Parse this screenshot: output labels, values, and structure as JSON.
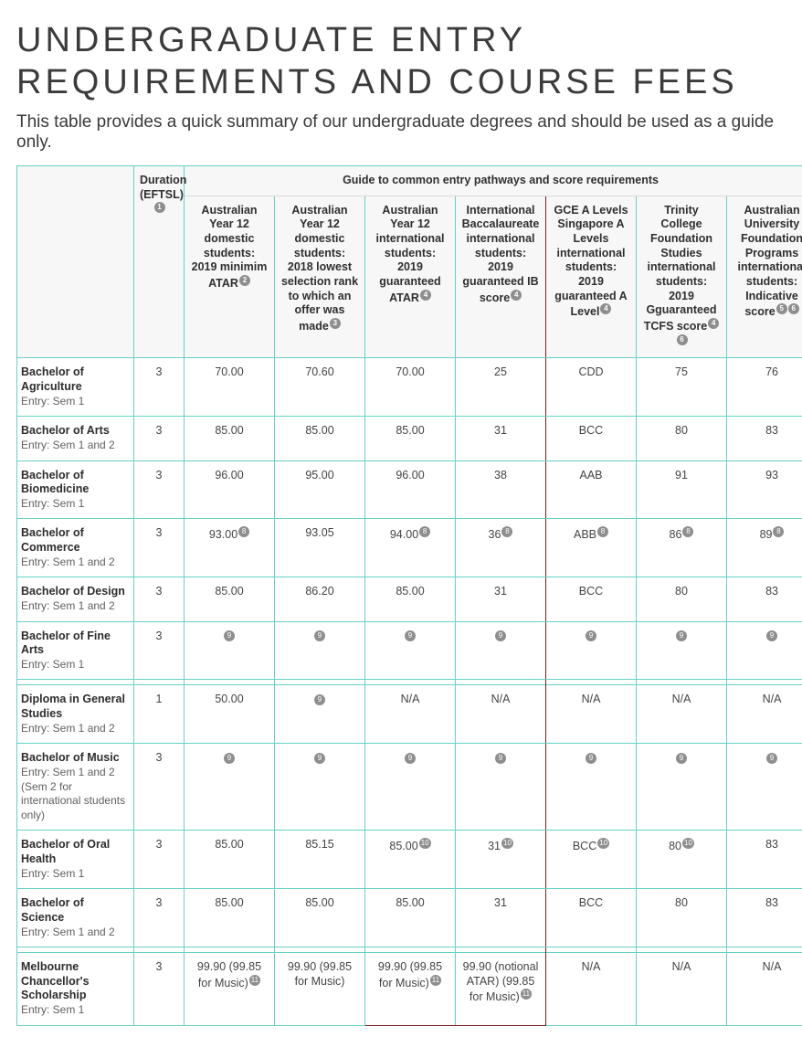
{
  "page": {
    "title": "UNDERGRADUATE ENTRY REQUIREMENTS AND COURSE FEES",
    "intro": "This table provides a quick summary of our undergraduate degrees and should be used as a guide only."
  },
  "headers": {
    "duration": "Duration (EFTSL)",
    "duration_note": "1",
    "pathways_title": "Guide to common entry pathways and score requirements",
    "cols": [
      {
        "label": "Australian Year 12 domestic students: 2019 minimim ATAR",
        "notes": [
          "2"
        ]
      },
      {
        "label": "Australian Year 12 domestic students: 2018 lowest selection rank to which an offer was made",
        "notes": [
          "3"
        ]
      },
      {
        "label": "Australian Year 12 international students: 2019 guaranteed ATAR",
        "notes": [
          "4"
        ],
        "hl": "left"
      },
      {
        "label": "International Baccalaureate international students: 2019 guaranteed IB score",
        "notes": [
          "4"
        ],
        "hl": "right"
      },
      {
        "label": "GCE A Levels Singapore A Levels international students: 2019 guaranteed A Level",
        "notes": [
          "4"
        ]
      },
      {
        "label": "Trinity College Foundation Studies international students: 2019 Gguaranteed TCFS score",
        "notes": [
          "4",
          "6"
        ]
      },
      {
        "label": "Australian University Foundation Programs international students: Indicative score",
        "notes": [
          "5",
          "6"
        ]
      }
    ]
  },
  "style": {
    "border_color": "#66d1c6",
    "header_bg": "#f7f7f7",
    "highlight_border": "#7a1d1d",
    "badge_bg": "#8e8e8e",
    "text_color": "#2a2a2a"
  },
  "rows": [
    {
      "course": "Bachelor of Agriculture",
      "entry": "Entry: Sem 1",
      "duration": "3",
      "cells": [
        {
          "v": "70.00"
        },
        {
          "v": "70.60"
        },
        {
          "v": "70.00"
        },
        {
          "v": "25"
        },
        {
          "v": "CDD"
        },
        {
          "v": "75"
        },
        {
          "v": "76"
        }
      ]
    },
    {
      "course": "Bachelor of Arts",
      "entry": "Entry: Sem 1 and 2",
      "duration": "3",
      "cells": [
        {
          "v": "85.00"
        },
        {
          "v": "85.00"
        },
        {
          "v": "85.00"
        },
        {
          "v": "31"
        },
        {
          "v": "BCC"
        },
        {
          "v": "80"
        },
        {
          "v": "83"
        }
      ]
    },
    {
      "course": "Bachelor of Biomedicine",
      "entry": "Entry: Sem 1",
      "duration": "3",
      "cells": [
        {
          "v": "96.00"
        },
        {
          "v": "95.00"
        },
        {
          "v": "96.00"
        },
        {
          "v": "38"
        },
        {
          "v": "AAB"
        },
        {
          "v": "91"
        },
        {
          "v": "93"
        }
      ]
    },
    {
      "course": "Bachelor of Commerce",
      "entry": "Entry: Sem 1 and 2",
      "duration": "3",
      "cells": [
        {
          "v": "93.00",
          "notes": [
            "8"
          ]
        },
        {
          "v": "93.05"
        },
        {
          "v": "94.00",
          "notes": [
            "8"
          ]
        },
        {
          "v": "36",
          "notes": [
            "8"
          ]
        },
        {
          "v": "ABB",
          "notes": [
            "8"
          ]
        },
        {
          "v": "86",
          "notes": [
            "8"
          ]
        },
        {
          "v": "89",
          "notes": [
            "8"
          ]
        }
      ]
    },
    {
      "course": "Bachelor of Design",
      "entry": "Entry: Sem 1 and 2",
      "duration": "3",
      "cells": [
        {
          "v": "85.00"
        },
        {
          "v": "86.20"
        },
        {
          "v": "85.00"
        },
        {
          "v": "31"
        },
        {
          "v": "BCC"
        },
        {
          "v": "80"
        },
        {
          "v": "83"
        }
      ]
    },
    {
      "course": "Bachelor of Fine Arts",
      "entry": "Entry: Sem 1",
      "duration": "3",
      "cells": [
        {
          "notes": [
            "9"
          ]
        },
        {
          "notes": [
            "9"
          ]
        },
        {
          "notes": [
            "9"
          ]
        },
        {
          "notes": [
            "9"
          ]
        },
        {
          "notes": [
            "9"
          ]
        },
        {
          "notes": [
            "9"
          ]
        },
        {
          "notes": [
            "9"
          ]
        }
      ],
      "spacer_after": true
    },
    {
      "course": "Diploma in General Studies",
      "entry": "Entry: Sem 1 and 2",
      "duration": "1",
      "cells": [
        {
          "v": "50.00"
        },
        {
          "notes": [
            "9"
          ]
        },
        {
          "v": "N/A"
        },
        {
          "v": "N/A"
        },
        {
          "v": "N/A"
        },
        {
          "v": "N/A"
        },
        {
          "v": "N/A"
        }
      ]
    },
    {
      "course": "Bachelor of Music",
      "entry": "Entry: Sem 1 and 2 (Sem 2 for international students only)",
      "duration": "3",
      "cells": [
        {
          "notes": [
            "9"
          ]
        },
        {
          "notes": [
            "9"
          ]
        },
        {
          "notes": [
            "9"
          ]
        },
        {
          "notes": [
            "9"
          ]
        },
        {
          "notes": [
            "9"
          ]
        },
        {
          "notes": [
            "9"
          ]
        },
        {
          "notes": [
            "9"
          ]
        }
      ]
    },
    {
      "course": "Bachelor of Oral Health",
      "entry": "Entry: Sem 1",
      "duration": "3",
      "cells": [
        {
          "v": "85.00"
        },
        {
          "v": "85.15"
        },
        {
          "v": "85.00",
          "notes": [
            "10"
          ]
        },
        {
          "v": "31",
          "notes": [
            "10"
          ]
        },
        {
          "v": "BCC",
          "notes": [
            "10"
          ]
        },
        {
          "v": "80",
          "notes": [
            "10"
          ]
        },
        {
          "v": "83"
        }
      ]
    },
    {
      "course": "Bachelor of Science",
      "entry": "Entry: Sem 1 and 2",
      "duration": "3",
      "cells": [
        {
          "v": "85.00"
        },
        {
          "v": "85.00"
        },
        {
          "v": "85.00"
        },
        {
          "v": "31"
        },
        {
          "v": "BCC"
        },
        {
          "v": "80"
        },
        {
          "v": "83"
        }
      ],
      "spacer_after": true
    },
    {
      "course": "Melbourne Chancellor's Scholarship",
      "entry": "Entry: Sem 1",
      "duration": "3",
      "cells": [
        {
          "v": "99.90 (99.85 for Music)",
          "notes": [
            "11"
          ]
        },
        {
          "v": "99.90 (99.85 for Music)"
        },
        {
          "v": "99.90 (99.85 for Music)",
          "notes": [
            "11"
          ]
        },
        {
          "v": "99.90 (notional ATAR) (99.85 for Music)",
          "notes": [
            "11"
          ]
        },
        {
          "v": "N/A"
        },
        {
          "v": "N/A"
        },
        {
          "v": "N/A"
        }
      ],
      "last": true
    }
  ]
}
